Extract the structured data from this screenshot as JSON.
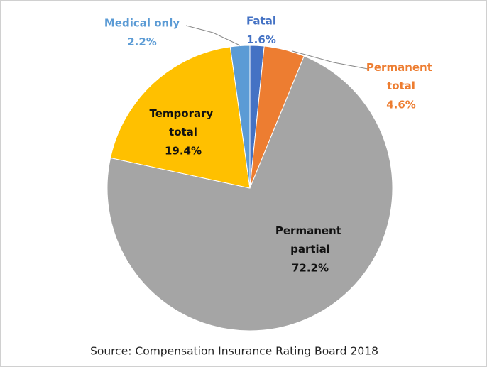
{
  "chart_data": {
    "type": "pie",
    "categories": [
      "Fatal",
      "Permanent total",
      "Permanent partial",
      "Temporary total",
      "Medical only"
    ],
    "values": [
      1.6,
      4.6,
      72.2,
      19.4,
      2.2
    ],
    "value_labels": [
      "1.6%",
      "4.6%",
      "72.2%",
      "19.4%",
      "2.2%"
    ],
    "colors": [
      "#4472c4",
      "#ed7d31",
      "#a5a5a5",
      "#ffc000",
      "#5b9bd5"
    ],
    "source": "Source:  Compensation Insurance Rating Board 2018"
  }
}
